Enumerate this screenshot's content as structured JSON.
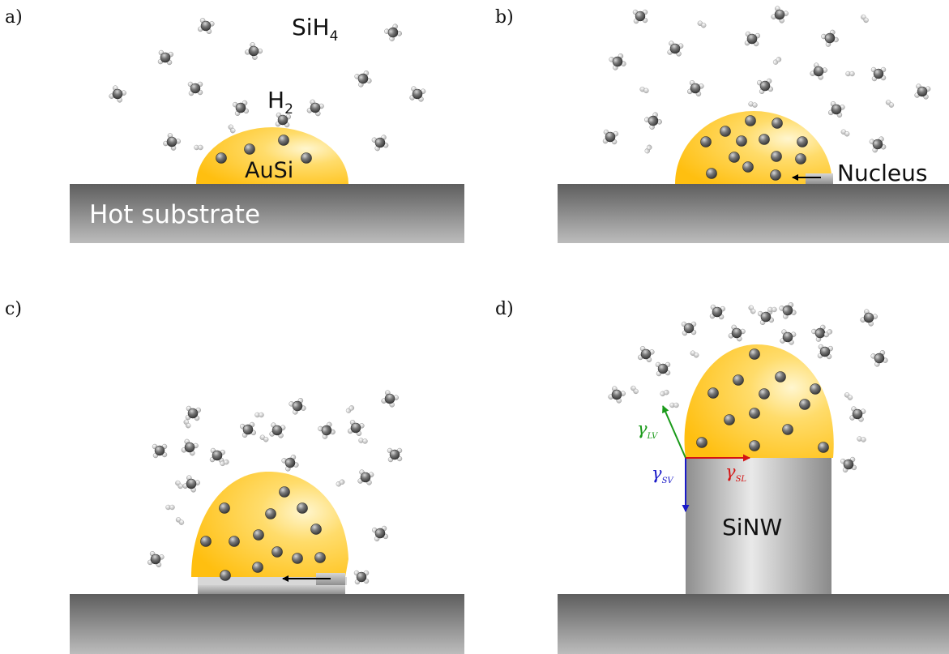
{
  "panels": {
    "a": {
      "label": "a)",
      "silane_label": "SiH",
      "silane_sub": "4",
      "hydrogen_label": "H",
      "hydrogen_sub": "2",
      "droplet_label": "AuSi",
      "substrate_label": "Hot substrate"
    },
    "b": {
      "label": "b)",
      "nucleus_label": "Nucleus"
    },
    "c": {
      "label": "c)"
    },
    "d": {
      "label": "d)",
      "nanowire_label": "SiNW",
      "gamma_symbol": "γ",
      "gamma_lv_sub": "LV",
      "gamma_sv_sub": "SV",
      "gamma_sl_sub": "SL"
    }
  },
  "colors": {
    "droplet_gold": "#ffc21a",
    "droplet_highlight": "#fff4c8",
    "substrate_dark": "#5e5e5e",
    "substrate_light": "#bdbdbd",
    "silicon_atom": "#6a6a6a",
    "gamma_lv": "#1a9a1a",
    "gamma_sv": "#1a1ac8",
    "gamma_sl": "#d41414"
  },
  "icons": {
    "silane_molecule": "silane-molecule-icon",
    "hydrogen_molecule": "hydrogen-molecule-icon",
    "silicon_atom": "silicon-atom-icon"
  }
}
